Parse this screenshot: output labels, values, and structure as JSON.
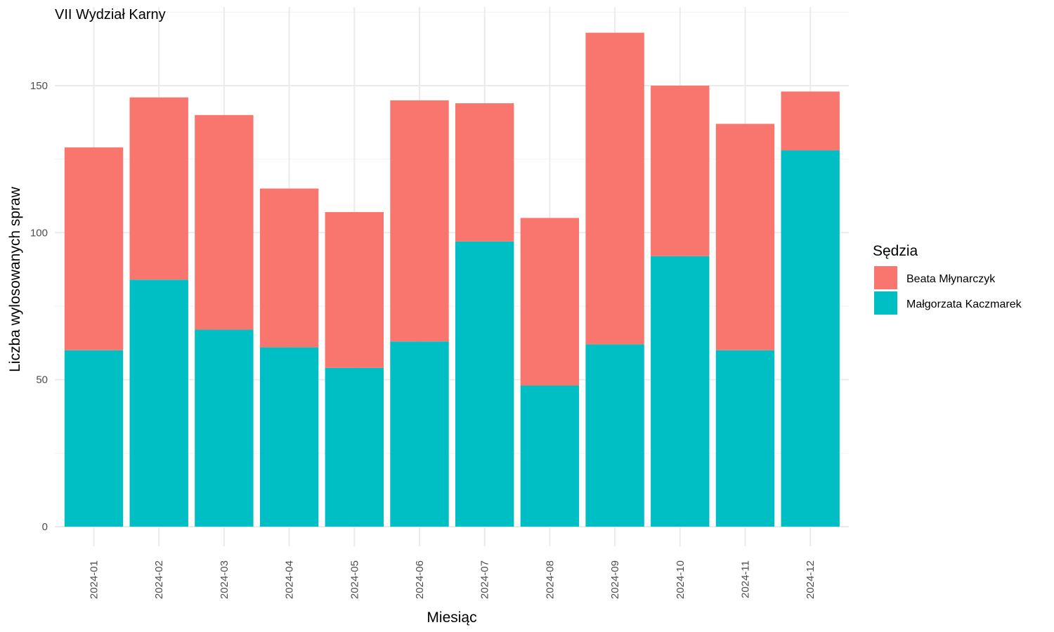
{
  "chart_data": {
    "type": "bar",
    "stacked": true,
    "title": "VII Wydział Karny",
    "xlabel": "Miesiąc",
    "ylabel": "Liczba wylosowanych spraw",
    "categories": [
      "2024-01",
      "2024-02",
      "2024-03",
      "2024-04",
      "2024-05",
      "2024-06",
      "2024-07",
      "2024-08",
      "2024-09",
      "2024-10",
      "2024-11",
      "2024-12"
    ],
    "series": [
      {
        "name": "Małgorzata Kaczmarek",
        "color": "#00BFC4",
        "values": [
          60,
          84,
          67,
          61,
          54,
          63,
          97,
          48,
          62,
          92,
          60,
          128
        ]
      },
      {
        "name": "Beata Młynarczyk",
        "color": "#F8766D",
        "values": [
          69,
          62,
          73,
          54,
          53,
          82,
          47,
          57,
          106,
          58,
          77,
          20
        ]
      }
    ],
    "ylim": [
      0,
      175
    ],
    "yticks": [
      0,
      50,
      100,
      150
    ],
    "grid": true,
    "legend": {
      "title": "Sędzia",
      "placement": "right",
      "order": [
        "Beata Młynarczyk",
        "Małgorzata Kaczmarek"
      ]
    }
  }
}
